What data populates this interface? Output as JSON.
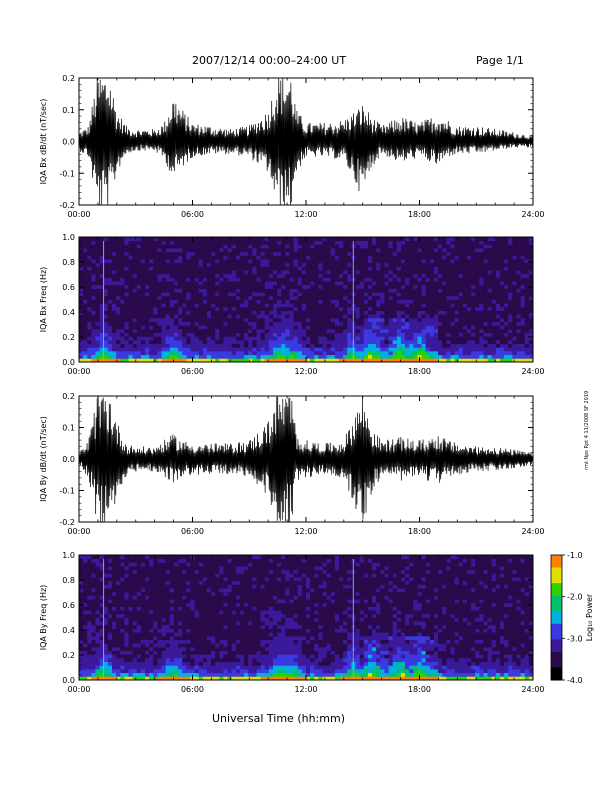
{
  "header": {
    "date_range": "2007/12/14  00:00–24:00 UT",
    "page": "Page 1/1"
  },
  "x_axis_label": "Universal Time (hh:mm)",
  "side_note": "rmt Nps Rpt 4 11/2008 SF 2019",
  "colors": {
    "trace": "#000000",
    "colorbar": [
      "#000000",
      "#2a0a4a",
      "#3a1a9a",
      "#3a3ae0",
      "#00b0e0",
      "#00c070",
      "#30d000",
      "#e0e000",
      "#ff8000",
      "#ff0000"
    ]
  },
  "chart_data": [
    {
      "type": "line",
      "panel": "IQA Bx dB/dt",
      "ylabel": "IQA Bx dB/dt (nT/sec)",
      "x_ticks": [
        "00:00",
        "06:00",
        "12:00",
        "18:00",
        "24:00"
      ],
      "x_range_hours": [
        0,
        24
      ],
      "y_ticks": [
        "-0.2",
        "-0.1",
        "0.0",
        "0.1",
        "0.2"
      ],
      "ylim": [
        -0.2,
        0.2
      ],
      "envelope": {
        "hours": [
          0,
          0.5,
          1.0,
          1.3,
          1.6,
          2.0,
          2.5,
          3.0,
          4.0,
          4.5,
          5.0,
          5.5,
          6.0,
          7.0,
          8.0,
          9.0,
          10.0,
          10.5,
          10.8,
          11.0,
          11.2,
          11.5,
          12.0,
          13.0,
          14.0,
          15.0,
          15.5,
          16.0,
          17.0,
          18.0,
          19.0,
          19.5,
          20.0,
          21.0,
          22.0,
          23.0,
          24.0
        ],
        "upper": [
          0.03,
          0.05,
          0.22,
          0.22,
          0.22,
          0.1,
          0.05,
          0.04,
          0.04,
          0.06,
          0.15,
          0.1,
          0.06,
          0.05,
          0.04,
          0.05,
          0.1,
          0.22,
          0.22,
          0.22,
          0.22,
          0.1,
          0.06,
          0.06,
          0.07,
          0.12,
          0.08,
          0.05,
          0.08,
          0.06,
          0.09,
          0.07,
          0.05,
          0.05,
          0.04,
          0.03,
          0.02
        ],
        "lower": [
          -0.03,
          -0.05,
          -0.22,
          -0.22,
          -0.22,
          -0.1,
          -0.04,
          -0.03,
          -0.03,
          -0.06,
          -0.12,
          -0.08,
          -0.05,
          -0.04,
          -0.04,
          -0.05,
          -0.1,
          -0.22,
          -0.22,
          -0.22,
          -0.22,
          -0.1,
          -0.05,
          -0.05,
          -0.06,
          -0.18,
          -0.08,
          -0.04,
          -0.07,
          -0.05,
          -0.08,
          -0.05,
          -0.04,
          -0.04,
          -0.03,
          -0.02,
          -0.02
        ]
      },
      "baseline": 0.0
    },
    {
      "type": "heatmap",
      "panel": "IQA Bx Freq",
      "ylabel": "IQA Bx Freq (Hz)",
      "x_ticks": [
        "00:00",
        "06:00",
        "12:00",
        "18:00",
        "24:00"
      ],
      "x_range_hours": [
        0,
        24
      ],
      "y_ticks": [
        "0.0",
        "0.2",
        "0.4",
        "0.6",
        "0.8",
        "1.0"
      ],
      "ylim": [
        0,
        1.0
      ],
      "colorbar_label": "Log₁₀ Power",
      "colorbar_ticks": [
        "-1.0",
        "-2.0",
        "-3.0",
        "-4.0"
      ],
      "colorbar_range": [
        -4.0,
        -1.0
      ],
      "active_hours": [
        1.3,
        5.0,
        10.5,
        10.8,
        11.2,
        14.5,
        15.5,
        17.0,
        18.0
      ],
      "vertical_lines_hours": [
        1.3,
        14.5
      ]
    },
    {
      "type": "line",
      "panel": "IQA By dB/dt",
      "ylabel": "IQA By dB/dt (nT/sec)",
      "x_ticks": [
        "00:00",
        "06:00",
        "12:00",
        "18:00",
        "24:00"
      ],
      "x_range_hours": [
        0,
        24
      ],
      "y_ticks": [
        "-0.2",
        "-0.1",
        "0.0",
        "0.1",
        "0.2"
      ],
      "ylim": [
        -0.2,
        0.2
      ],
      "envelope": {
        "hours": [
          0,
          0.5,
          1.0,
          1.3,
          1.6,
          2.0,
          2.5,
          3.0,
          4.0,
          4.5,
          5.0,
          5.5,
          6.0,
          7.0,
          8.0,
          9.0,
          10.0,
          10.5,
          10.8,
          11.0,
          11.2,
          11.5,
          12.0,
          13.0,
          14.0,
          15.0,
          15.5,
          16.0,
          17.0,
          18.0,
          19.0,
          19.5,
          20.0,
          21.0,
          22.0,
          23.0,
          24.0
        ],
        "upper": [
          0.02,
          0.06,
          0.22,
          0.22,
          0.22,
          0.12,
          0.05,
          0.04,
          0.04,
          0.06,
          0.08,
          0.06,
          0.05,
          0.05,
          0.05,
          0.06,
          0.12,
          0.22,
          0.22,
          0.22,
          0.22,
          0.08,
          0.06,
          0.05,
          0.06,
          0.22,
          0.1,
          0.06,
          0.07,
          0.06,
          0.08,
          0.06,
          0.05,
          0.04,
          0.04,
          0.03,
          0.02
        ],
        "lower": [
          -0.02,
          -0.06,
          -0.22,
          -0.22,
          -0.22,
          -0.12,
          -0.06,
          -0.04,
          -0.04,
          -0.06,
          -0.08,
          -0.06,
          -0.05,
          -0.05,
          -0.05,
          -0.06,
          -0.12,
          -0.22,
          -0.22,
          -0.22,
          -0.22,
          -0.08,
          -0.06,
          -0.05,
          -0.06,
          -0.22,
          -0.1,
          -0.06,
          -0.07,
          -0.06,
          -0.08,
          -0.06,
          -0.05,
          -0.04,
          -0.04,
          -0.03,
          -0.02
        ]
      },
      "baseline": 0.0
    },
    {
      "type": "heatmap",
      "panel": "IQA By Freq",
      "ylabel": "IQA By Freq (Hz)",
      "x_ticks": [
        "00:00",
        "06:00",
        "12:00",
        "18:00",
        "24:00"
      ],
      "x_range_hours": [
        0,
        24
      ],
      "y_ticks": [
        "0.0",
        "0.2",
        "0.4",
        "0.6",
        "0.8",
        "1.0"
      ],
      "ylim": [
        0,
        1.0
      ],
      "colorbar_label": "Log₁₀ Power",
      "colorbar_ticks": [
        "-1.0",
        "-2.0",
        "-3.0",
        "-4.0"
      ],
      "colorbar_range": [
        -4.0,
        -1.0
      ],
      "active_hours": [
        1.3,
        5.0,
        10.5,
        10.8,
        11.2,
        14.5,
        15.5,
        17.0,
        18.0
      ],
      "vertical_lines_hours": [
        1.3,
        14.5
      ]
    }
  ]
}
